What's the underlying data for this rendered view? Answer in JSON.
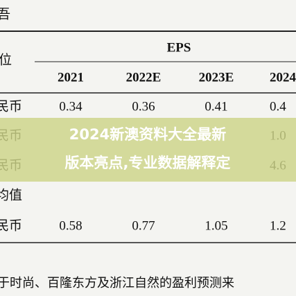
{
  "table": {
    "corner": "吾",
    "unit_label": "位",
    "group_header": "EPS",
    "columns": [
      "2021",
      "2022E",
      "2023E",
      "2024"
    ],
    "rows": [
      [
        "民币",
        "0.34",
        "0.36",
        "0.41",
        "0.4"
      ],
      [
        "民币",
        "",
        "",
        "",
        "1.0"
      ],
      [
        "民币",
        "",
        "",
        "",
        "4.6"
      ],
      [
        "均值",
        "",
        "",
        "",
        ""
      ],
      [
        "民币",
        "0.58",
        "0.77",
        "1.05",
        "1.2"
      ]
    ]
  },
  "footnote": "于时尚、百隆东方及浙江自然的盈利预测来",
  "banner": {
    "lines": [
      "2024新澳资料大全最新",
      "版本亮点,专业数据解释定"
    ]
  }
}
